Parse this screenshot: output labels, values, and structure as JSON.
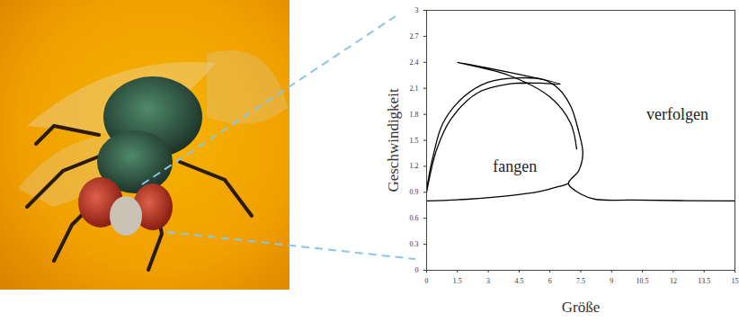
{
  "chart_data": {
    "type": "line",
    "xlabel": "Größe",
    "ylabel": "Geschwindigkeit",
    "xlim": [
      0,
      15
    ],
    "ylim": [
      0,
      3
    ],
    "xticks": [
      0,
      1.5,
      3,
      4.5,
      6,
      7.5,
      9,
      10.5,
      12,
      13.5,
      15
    ],
    "yticks": [
      0,
      0.3,
      0.6,
      0.9,
      1.2,
      1.5,
      1.8,
      2.1,
      2.4,
      2.7,
      3
    ],
    "grid": false,
    "annotations": [
      {
        "text": "fangen",
        "x": 4.3,
        "y": 1.2
      },
      {
        "text": "verfolgen",
        "x": 12.2,
        "y": 1.8
      }
    ],
    "series": [
      {
        "color": "#000000",
        "x": [
          0,
          0.3,
          0.8,
          1.8,
          3,
          4.5,
          5.7,
          6.4,
          7,
          7.4,
          7.6,
          7.4,
          6.9,
          7.5,
          8.2,
          10,
          15
        ],
        "values": [
          0.93,
          1.3,
          1.7,
          2.0,
          2.17,
          2.22,
          2.2,
          2.1,
          1.9,
          1.6,
          1.35,
          1.15,
          1.0,
          0.88,
          0.82,
          0.81,
          0.8
        ]
      },
      {
        "color": "#000000",
        "x": [
          0,
          0.5,
          1.2,
          2.5,
          4,
          5.5,
          6.5,
          1.5,
          4,
          6,
          7,
          7.3
        ],
        "values": [
          0.9,
          1.4,
          1.75,
          2.05,
          2.15,
          2.16,
          2.15,
          2.4,
          2.25,
          2.0,
          1.7,
          1.4
        ]
      },
      {
        "color": "#000000",
        "x": [
          0,
          2,
          4,
          5.5,
          6.5,
          6.9
        ],
        "values": [
          0.8,
          0.82,
          0.86,
          0.91,
          0.97,
          1.0
        ]
      }
    ]
  }
}
